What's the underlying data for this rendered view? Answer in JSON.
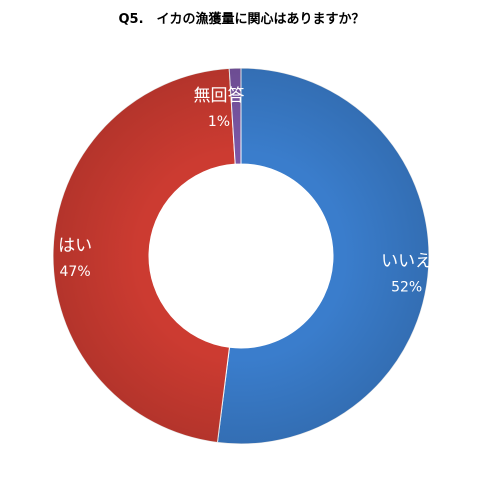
{
  "chart_data": {
    "type": "pie",
    "title": "Q5.　イカの漁獲量に関心はありますか？",
    "donut": true,
    "slices": [
      {
        "label": "いいえ",
        "percent_label": "52%",
        "value": 52,
        "color": "#3a7dcc"
      },
      {
        "label": "はい",
        "percent_label": "47%",
        "value": 47,
        "color": "#cc3b31"
      },
      {
        "label": "無回答",
        "percent_label": "1%",
        "value": 1,
        "color": "#7b57a6"
      }
    ]
  }
}
